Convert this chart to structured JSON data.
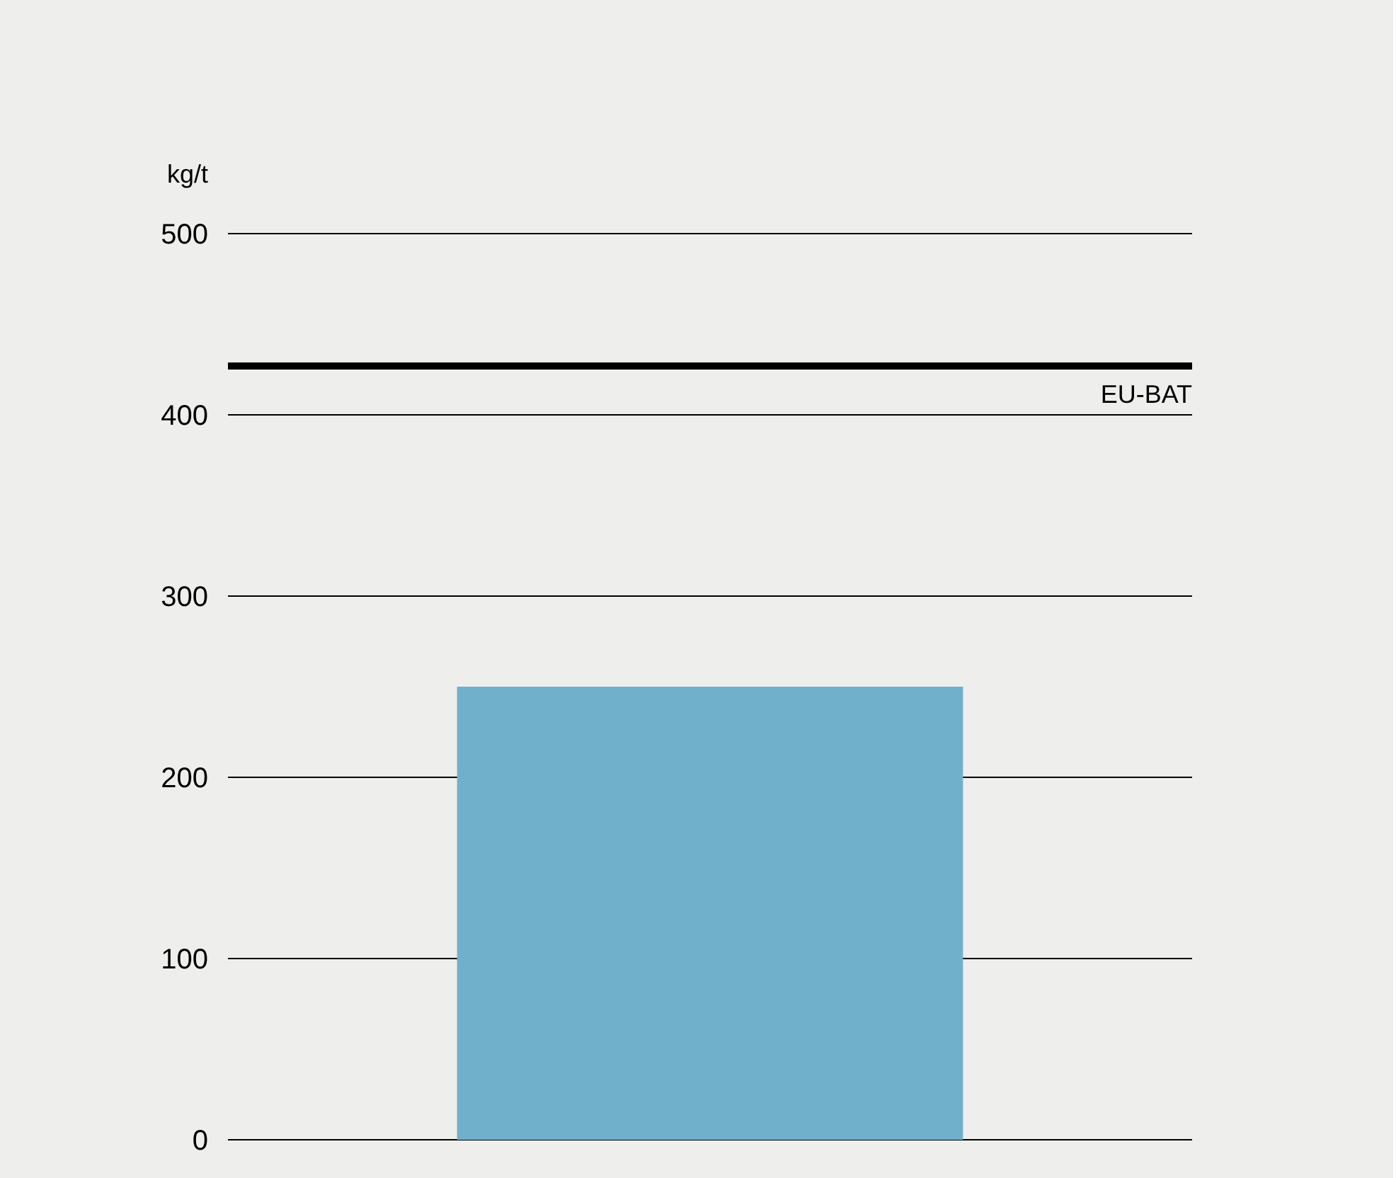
{
  "chart_data": {
    "type": "bar",
    "ylabel": "kg/t",
    "categories": [
      null
    ],
    "values": [
      250
    ],
    "color": "#71b0cb",
    "ylim": [
      0,
      500
    ],
    "yticks": [
      0,
      100,
      200,
      300,
      400,
      500
    ],
    "grid": "y",
    "ref_lines": [
      {
        "axis": "y",
        "value": 427,
        "label": "EU-BAT",
        "color": "#000000"
      }
    ]
  }
}
